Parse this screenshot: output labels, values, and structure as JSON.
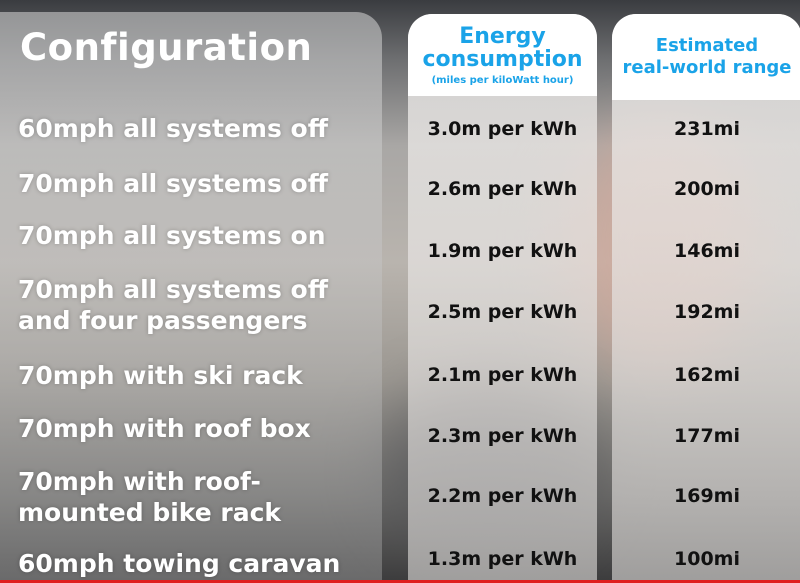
{
  "header": {
    "configuration": "Configuration",
    "energy_line1": "Energy",
    "energy_line2": "consumption",
    "energy_unit": "(miles per kiloWatt hour)",
    "range_line1": "Estimated",
    "range_line2": "real-world range"
  },
  "rows": [
    {
      "label": [
        "60mph all systems off"
      ],
      "energy": "3.0m per kWh",
      "range": "231mi"
    },
    {
      "label": [
        "70mph all systems off"
      ],
      "energy": "2.6m per kWh",
      "range": "200mi"
    },
    {
      "label": [
        "70mph all systems on"
      ],
      "energy": "1.9m per kWh",
      "range": "146mi"
    },
    {
      "label": [
        "70mph all systems off",
        "and four passengers"
      ],
      "energy": "2.5m per kWh",
      "range": "192mi"
    },
    {
      "label": [
        "70mph with ski rack"
      ],
      "energy": "2.1m per kWh",
      "range": "162mi"
    },
    {
      "label": [
        "70mph with roof box"
      ],
      "energy": "2.3m per kWh",
      "range": "177mi"
    },
    {
      "label": [
        "70mph with roof-",
        "mounted bike rack"
      ],
      "energy": "2.2m per kWh",
      "range": "169mi"
    },
    {
      "label": [
        "60mph towing caravan"
      ],
      "energy": "1.3m per kWh",
      "range": "100mi"
    }
  ],
  "colors": {
    "accent": "#1aa3e8",
    "progress": "#e02020"
  }
}
